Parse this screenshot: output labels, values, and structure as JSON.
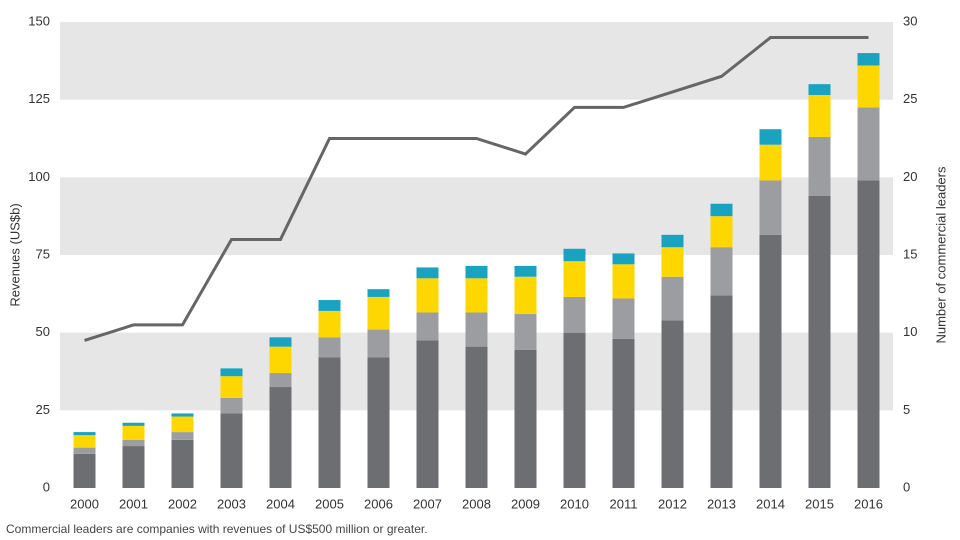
{
  "chart_data": {
    "type": "bar",
    "stacked": true,
    "categories": [
      "2000",
      "2001",
      "2002",
      "2003",
      "2004",
      "2005",
      "2006",
      "2007",
      "2008",
      "2009",
      "2010",
      "2011",
      "2012",
      "2013",
      "2014",
      "2015",
      "2016"
    ],
    "series": [
      {
        "color": "#6d6e71",
        "values": [
          11,
          13.5,
          15.5,
          24,
          32.5,
          42,
          42,
          47.5,
          45.5,
          44.5,
          50,
          48,
          54,
          62,
          81.5,
          94,
          99
        ]
      },
      {
        "color": "#9c9da1",
        "values": [
          2,
          2,
          2.5,
          5,
          4.5,
          6.5,
          9,
          9,
          11,
          11.5,
          11.5,
          13,
          14,
          15.5,
          17.5,
          19,
          23.5
        ]
      },
      {
        "color": "#ffd700",
        "values": [
          4,
          4.5,
          5,
          7,
          8.5,
          8.5,
          10.5,
          11,
          11,
          12,
          11.5,
          11,
          9.5,
          10,
          11.5,
          13.5,
          13.5
        ]
      },
      {
        "color": "#19a3c0",
        "values": [
          1,
          1,
          1,
          2.5,
          3,
          3.5,
          2.5,
          3.5,
          4,
          3.5,
          4,
          3.5,
          4,
          4,
          5,
          3.5,
          4
        ]
      },
      {
        "type": "line",
        "axis": "y2",
        "color": "#666666",
        "values": [
          9.5,
          10.5,
          10.5,
          16,
          16,
          22.5,
          22.5,
          22.5,
          22.5,
          21.5,
          24.5,
          24.5,
          25.5,
          26.5,
          29,
          29,
          29
        ]
      }
    ],
    "ylabel": "Revenues (US$b)",
    "y2label": "Number of commercial leaders",
    "ylim": [
      0,
      150
    ],
    "yticks": [
      0,
      25,
      50,
      75,
      100,
      125,
      150
    ],
    "y2lim": [
      0,
      30
    ],
    "y2ticks": [
      0,
      5,
      10,
      15,
      20,
      25,
      30
    ],
    "grid": "bands",
    "band_color": "#e6e6e7",
    "note": "Commercial leaders are companies with revenues of US$500 million or greater."
  }
}
